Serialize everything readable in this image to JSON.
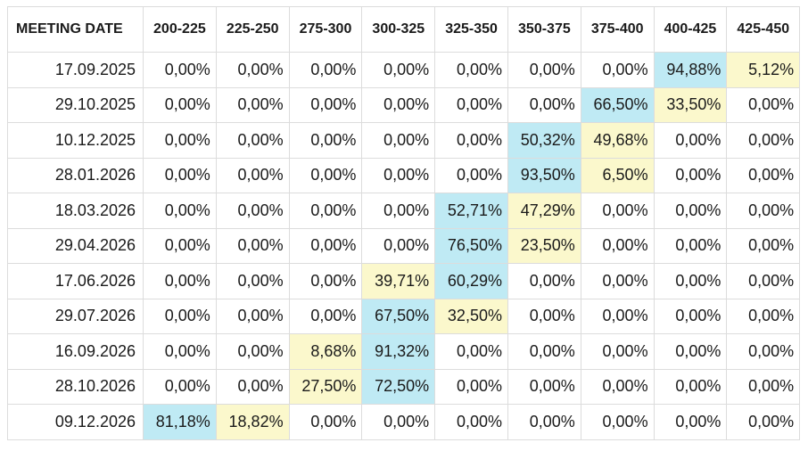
{
  "chart_data": {
    "type": "table",
    "columns": [
      "MEETING DATE",
      "200-225",
      "225-250",
      "275-300",
      "300-325",
      "325-350",
      "350-375",
      "375-400",
      "400-425",
      "425-450"
    ],
    "rows": [
      [
        "17.09.2025",
        "0,00%",
        "0,00%",
        "0,00%",
        "0,00%",
        "0,00%",
        "0,00%",
        "0,00%",
        "94,88%",
        "5,12%"
      ],
      [
        "29.10.2025",
        "0,00%",
        "0,00%",
        "0,00%",
        "0,00%",
        "0,00%",
        "0,00%",
        "66,50%",
        "33,50%",
        "0,00%"
      ],
      [
        "10.12.2025",
        "0,00%",
        "0,00%",
        "0,00%",
        "0,00%",
        "0,00%",
        "50,32%",
        "49,68%",
        "0,00%",
        "0,00%"
      ],
      [
        "28.01.2026",
        "0,00%",
        "0,00%",
        "0,00%",
        "0,00%",
        "0,00%",
        "93,50%",
        "6,50%",
        "0,00%",
        "0,00%"
      ],
      [
        "18.03.2026",
        "0,00%",
        "0,00%",
        "0,00%",
        "0,00%",
        "52,71%",
        "47,29%",
        "0,00%",
        "0,00%",
        "0,00%"
      ],
      [
        "29.04.2026",
        "0,00%",
        "0,00%",
        "0,00%",
        "0,00%",
        "76,50%",
        "23,50%",
        "0,00%",
        "0,00%",
        "0,00%"
      ],
      [
        "17.06.2026",
        "0,00%",
        "0,00%",
        "0,00%",
        "39,71%",
        "60,29%",
        "0,00%",
        "0,00%",
        "0,00%",
        "0,00%"
      ],
      [
        "29.07.2026",
        "0,00%",
        "0,00%",
        "0,00%",
        "67,50%",
        "32,50%",
        "0,00%",
        "0,00%",
        "0,00%",
        "0,00%"
      ],
      [
        "16.09.2026",
        "0,00%",
        "0,00%",
        "8,68%",
        "91,32%",
        "0,00%",
        "0,00%",
        "0,00%",
        "0,00%",
        "0,00%"
      ],
      [
        "28.10.2026",
        "0,00%",
        "0,00%",
        "27,50%",
        "72,50%",
        "0,00%",
        "0,00%",
        "0,00%",
        "0,00%",
        "0,00%"
      ],
      [
        "09.12.2026",
        "81,18%",
        "18,82%",
        "0,00%",
        "0,00%",
        "0,00%",
        "0,00%",
        "0,00%",
        "0,00%",
        "0,00%"
      ]
    ],
    "highlight_colors": {
      "highest": "#bfeaf4",
      "second": "#fbf8cc",
      "none": "#ffffff"
    }
  }
}
